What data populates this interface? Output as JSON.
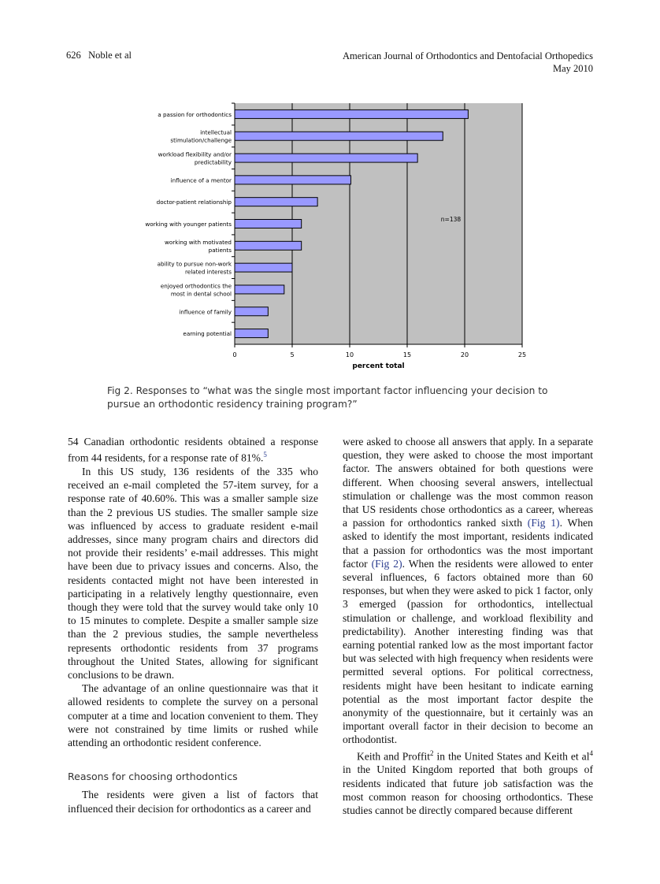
{
  "header": {
    "page": "626",
    "authors": "Noble et al",
    "journal": "American Journal of Orthodontics and Dentofacial Orthopedics",
    "issue": "May 2010"
  },
  "chart_data": {
    "type": "bar",
    "orientation": "horizontal",
    "categories": [
      "a passion for orthodontics",
      "intellectual stimulation/challenge",
      "workload flexibility and/or predictability",
      "influence of a mentor",
      "doctor-patient relationship",
      "working with younger patients",
      "working with motivated patients",
      "ability to pursue non-work related interests",
      "enjoyed orthodontics the most in dental school",
      "influence of family",
      "earning potential"
    ],
    "values": [
      20.3,
      18.1,
      15.9,
      10.1,
      7.2,
      5.8,
      5.8,
      5.0,
      4.3,
      2.9,
      2.9
    ],
    "xlabel": "percent total",
    "xlim": [
      0,
      25
    ],
    "xticks": [
      0,
      5,
      10,
      15,
      20,
      25
    ],
    "annotation": "n=138",
    "grid": true,
    "colors": {
      "bar": "#9999ff",
      "plot_bg": "#c0c0c0"
    }
  },
  "caption": "Fig 2. Responses to “what was the single most important factor influencing your decision to pursue an orthodontic residency training program?”",
  "left": {
    "p1a": "54 Canadian orthodontic residents obtained a response from 44 residents, for a response rate of 81%.",
    "p1ref": "5",
    "p2": "In this US study, 136 residents of the 335 who received an e-mail completed the 57-item survey, for a response rate of 40.60%. This was a smaller sample size than the 2 previous US studies. The smaller sample size was influenced by access to graduate resident e-mail addresses, since many program chairs and directors did not provide their residents’ e-mail addresses. This might have been due to privacy issues and concerns. Also, the residents contacted might not have been interested in participating in a relatively lengthy questionnaire, even though they were told that the survey would take only 10 to 15 minutes to complete. Despite a smaller sample size than the 2 previous studies, the sample nevertheless represents orthodontic residents from 37 programs throughout the United States, allowing for significant conclusions to be drawn.",
    "p3": "The advantage of an online questionnaire was that it allowed residents to complete the survey on a personal computer at a time and location convenient to them. They were not constrained by time limits or rushed while attending an orthodontic resident conference.",
    "section": "Reasons for choosing orthodontics",
    "p4": "The residents were given a list of factors that influenced their decision for orthodontics as a career and"
  },
  "right": {
    "p1a": "were asked to choose all answers that apply. In a separate question, they were asked to choose the most important factor. The answers obtained for both questions were different. When choosing several answers, intellectual stimulation or challenge was the most common reason that US residents chose orthodontics as a career, whereas a passion for orthodontics ranked sixth ",
    "fig1": "(Fig 1)",
    "p1b": ". When asked to identify the most important, residents indicated that a passion for orthodontics was the most important factor ",
    "fig2": "(Fig 2)",
    "p1c": ". When the residents were allowed to enter several influences, 6 factors obtained more than 60 responses, but when they were asked to pick 1 factor, only 3 emerged (passion for orthodontics, intellectual stimulation or challenge, and workload flexibility and predictability). Another interesting finding was that earning potential ranked low as the most important factor but was selected with high frequency when residents were permitted several options. For political correctness, residents might have been hesitant to indicate earning potential as the most important factor despite the anonymity of the questionnaire, but it certainly was an important overall factor in their decision to become an orthodontist.",
    "p2a": "Keith and Proffit",
    "p2r1": "2",
    "p2b": " in the United States and Keith et al",
    "p2r2": "4",
    "p2c": " in the United Kingdom reported that both groups of residents indicated that future job satisfaction was the most common reason for choosing orthodontics. These studies cannot be directly compared because different"
  }
}
